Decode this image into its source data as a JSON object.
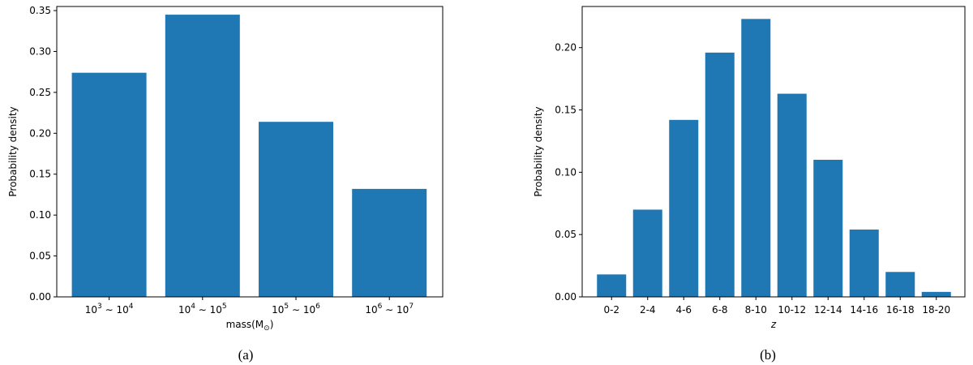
{
  "colors": {
    "bar": "#1f77b4",
    "axis": "#000000"
  },
  "chart_data": [
    {
      "type": "bar",
      "caption": "(a)",
      "xlabel": "mass(M",
      "xlabel_sub": "⊙",
      "xlabel_close": ")",
      "ylabel": "Probability density",
      "ylim": [
        0,
        0.355
      ],
      "yticks": [
        "0.00",
        "0.05",
        "0.10",
        "0.15",
        "0.20",
        "0.25",
        "0.30",
        "0.35"
      ],
      "categories": [
        {
          "base1": "10",
          "exp1": "3",
          "sep": " ∼ ",
          "base2": "10",
          "exp2": "4"
        },
        {
          "base1": "10",
          "exp1": "4",
          "sep": " ∼ ",
          "base2": "10",
          "exp2": "5"
        },
        {
          "base1": "10",
          "exp1": "5",
          "sep": " ∼ ",
          "base2": "10",
          "exp2": "6"
        },
        {
          "base1": "10",
          "exp1": "6",
          "sep": " ∼ ",
          "base2": "10",
          "exp2": "7"
        }
      ],
      "values": [
        0.274,
        0.345,
        0.214,
        0.132
      ]
    },
    {
      "type": "bar",
      "caption": "(b)",
      "xlabel": "z",
      "ylabel": "Probability density",
      "ylim": [
        0,
        0.233
      ],
      "yticks": [
        "0.00",
        "0.05",
        "0.10",
        "0.15",
        "0.20"
      ],
      "categories": [
        "0-2",
        "2-4",
        "4-6",
        "6-8",
        "8-10",
        "10-12",
        "12-14",
        "14-16",
        "16-18",
        "18-20"
      ],
      "values": [
        0.018,
        0.07,
        0.142,
        0.196,
        0.223,
        0.163,
        0.11,
        0.054,
        0.02,
        0.004
      ]
    }
  ]
}
